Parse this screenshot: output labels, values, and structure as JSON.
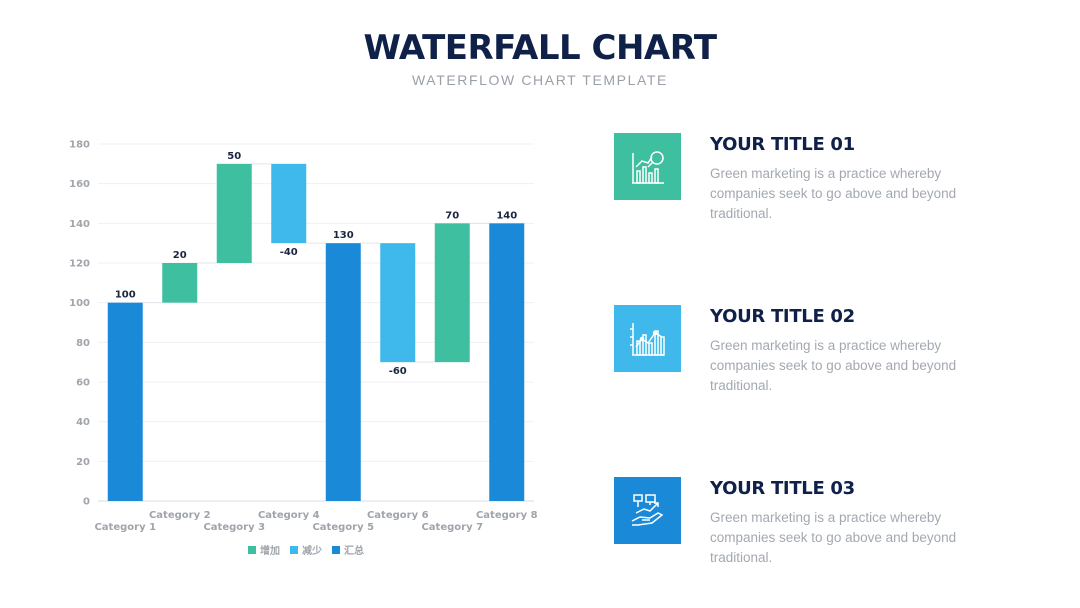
{
  "header": {
    "title": "WATERFALL CHART",
    "subtitle": "WATERFLOW CHART TEMPLATE"
  },
  "features": [
    {
      "title": "YOUR TITLE 01",
      "desc": "Green marketing is a practice whereby companies seek to go above and beyond traditional.",
      "icon": "chart-magnifier-icon",
      "color": "#3ebfa0"
    },
    {
      "title": "YOUR TITLE 02",
      "desc": "Green marketing is a practice whereby companies seek to go above and beyond traditional.",
      "icon": "line-bar-chart-icon",
      "color": "#3fb8ec"
    },
    {
      "title": "YOUR TITLE 03",
      "desc": "Green marketing is a practice whereby companies seek to go above and beyond traditional.",
      "icon": "growth-hand-icon",
      "color": "#1a8ad8"
    }
  ],
  "chart_data": {
    "type": "bar",
    "subtype": "waterfall",
    "categories": [
      "Category 1",
      "Category 2",
      "Category 3",
      "Category 4",
      "Category 5",
      "Category 6",
      "Category 7",
      "Category 8"
    ],
    "bars": [
      {
        "category": "Category 1",
        "kind": "total",
        "start": 0,
        "end": 100,
        "label": "100"
      },
      {
        "category": "Category 2",
        "kind": "increase",
        "start": 100,
        "end": 120,
        "label": "20"
      },
      {
        "category": "Category 3",
        "kind": "increase",
        "start": 120,
        "end": 170,
        "label": "50"
      },
      {
        "category": "Category 4",
        "kind": "decrease",
        "start": 170,
        "end": 130,
        "label": "-40"
      },
      {
        "category": "Category 5",
        "kind": "total",
        "start": 0,
        "end": 130,
        "label": "130"
      },
      {
        "category": "Category 6",
        "kind": "decrease",
        "start": 130,
        "end": 70,
        "label": "-60"
      },
      {
        "category": "Category 7",
        "kind": "increase",
        "start": 70,
        "end": 140,
        "label": "70"
      },
      {
        "category": "Category 8",
        "kind": "total",
        "start": 0,
        "end": 140,
        "label": "140"
      }
    ],
    "ylim": [
      0,
      180
    ],
    "yticks": [
      0,
      20,
      40,
      60,
      80,
      100,
      120,
      140,
      160,
      180
    ],
    "grid": true,
    "legend": {
      "position": "bottom",
      "entries": [
        {
          "name": "增加",
          "kind": "increase",
          "color": "#3ebfa0"
        },
        {
          "name": "减少",
          "kind": "decrease",
          "color": "#3fb8ec"
        },
        {
          "name": "汇总",
          "kind": "total",
          "color": "#1a8ad8"
        }
      ]
    },
    "colors": {
      "increase": "#3ebfa0",
      "decrease": "#3fb8ec",
      "total": "#1a8ad8"
    }
  }
}
